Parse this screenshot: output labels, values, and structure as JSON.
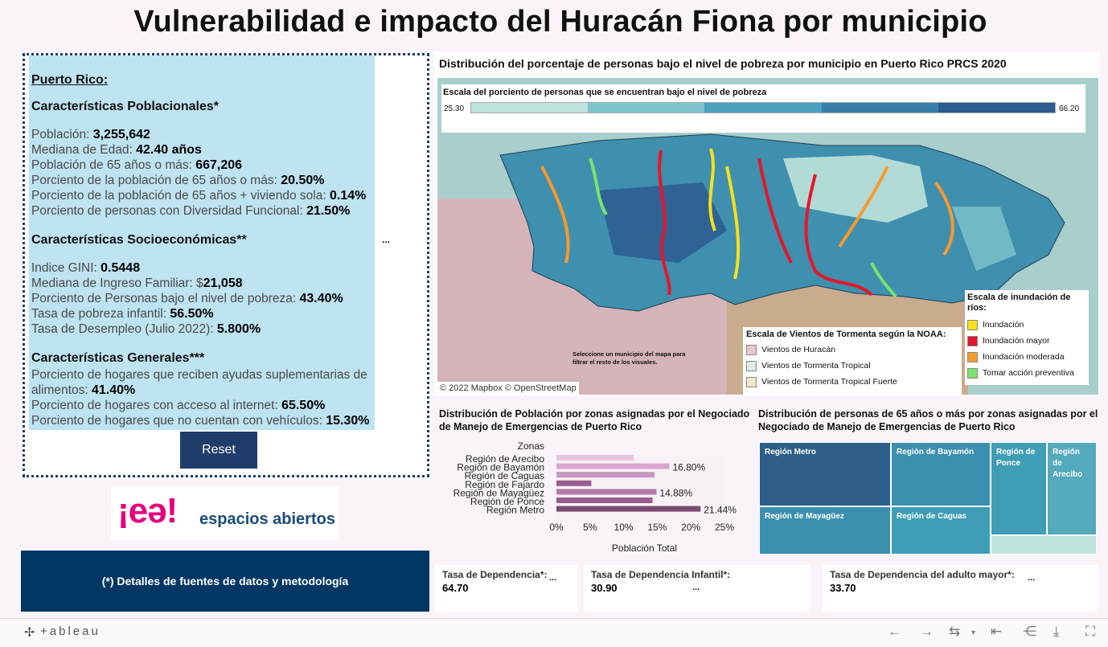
{
  "title": "Vulnerabilidad e impacto del Huracán Fiona por municipio",
  "info": {
    "heading": "Puerto Rico:",
    "pop_heading": "Características Poblacionales*",
    "pop_lines": [
      {
        "label": "Población: ",
        "value": "3,255,642"
      },
      {
        "label": "Mediana de Edad: ",
        "value": "42.40 años"
      },
      {
        "label": "Población de 65 años o más: ",
        "value": "667,206"
      },
      {
        "label": "Porciento de la población de 65 años o más: ",
        "value": "20.50%"
      },
      {
        "label": "Porciento de la población de 65 años + viviendo sola: ",
        "value": "0.14%"
      },
      {
        "label": "Porciento de personas con Diversidad Funcional: ",
        "value": "21.50%"
      }
    ],
    "socio_heading": "Características Socioeconómicas**",
    "socio_lines": [
      {
        "label": "Indice GINI: ",
        "value": "0.5448"
      },
      {
        "label": "Mediana de Ingreso Familiar: $",
        "value": "21,058"
      },
      {
        "label": "Porciento de Personas bajo el nivel de pobreza: ",
        "value": "43.40%"
      },
      {
        "label": "Tasa de pobreza infantil: ",
        "value": "56.50%"
      },
      {
        "label": "Tasa de Desempleo (Julio 2022): ",
        "value": "5.800%"
      }
    ],
    "gen_heading": "Características Generales***",
    "gen_lines": [
      {
        "label": "Porciento de hogares que reciben ayudas suplementarias de alimentos: ",
        "value": "41.40%"
      },
      {
        "label": "Porciento de hogares con acceso al internet: ",
        "value": "65.50%"
      },
      {
        "label": "Porciento de hogares que no cuentan con vehículos: ",
        "value": "15.30%"
      }
    ],
    "ellipsis": "...",
    "reset_label": "Reset"
  },
  "logo": {
    "mark": "¡eə!",
    "word": "espacios abiertos"
  },
  "details_label": "(*) Detalles de fuentes de datos y metodología",
  "map": {
    "title": "Distribución del porcentaje de personas bajo el nivel de pobreza por municipio en Puerto Rico PRCS 2020",
    "scale_title": "Escala del porciento de personas que se encuentran bajo el nivel de pobreza",
    "scale_min": "25.30",
    "scale_max": "66.20",
    "scale_colors": [
      "#bfe3dd",
      "#7fc3cc",
      "#4aa0bd",
      "#3a7fa8",
      "#2c5c8e"
    ],
    "attribution": "© 2022 Mapbox  © OpenStreetMap",
    "select_note": "Seleccione un municipio del mapa para filtrar el resto de los visuales.",
    "noaa_title": "Escala de Vientos de Tormenta según la NOAA:",
    "noaa_items": [
      {
        "label": "Vientos de Huracán",
        "color": "#e8c8cf"
      },
      {
        "label": "Vientos de Tormenta Tropical",
        "color": "#dcefe2"
      },
      {
        "label": "Vientos de Tormenta Tropical Fuerte",
        "color": "#f5e8c8"
      }
    ],
    "flood_title": "Escala de inundación de ríos:",
    "flood_items": [
      {
        "label": "Inundación",
        "color": "#f7e01b"
      },
      {
        "label": "Inundación mayor",
        "color": "#e5162b"
      },
      {
        "label": "Inundación moderada",
        "color": "#f79a2e"
      },
      {
        "label": "Tomar acción preventiva",
        "color": "#7be36b"
      }
    ]
  },
  "bar": {
    "title": "Distribución de Población por zonas asignadas por el Negociado de Manejo de Emergencias de Puerto Rico",
    "axis_title": "Zonas",
    "xlabel": "Población Total",
    "ticks": [
      "0%",
      "5%",
      "10%",
      "15%",
      "20%",
      "25%"
    ]
  },
  "chart_data": {
    "type": "bar",
    "orientation": "horizontal",
    "categories": [
      "Región de Arecibo",
      "Región de Bayamón",
      "Región de Caguas",
      "Región de Fajardo",
      "Región de Mayagüez",
      "Región de Ponce",
      "Región Metro"
    ],
    "values": [
      11.5,
      16.8,
      14.6,
      5.2,
      14.88,
      14.3,
      21.44
    ],
    "labels": [
      "",
      "16.80%",
      "",
      "",
      "14.88%",
      "",
      "21.44%"
    ],
    "colors": [
      "#e6c5e0",
      "#d8a7cf",
      "#c996c0",
      "#9a5d8e",
      "#b07aa6",
      "#9a5d8e",
      "#7a4c72"
    ],
    "xlim": [
      0,
      25
    ],
    "xlabel": "Población Total",
    "ylabel": "Zonas"
  },
  "tree": {
    "title": "Distribución de personas de 65 años o más por zonas asignadas por el Negociado de Manejo de Emergencias de Puerto Rico",
    "items": [
      {
        "label": "Región Metro",
        "color": "#2d5f8a"
      },
      {
        "label": "Región de Bayamón",
        "color": "#3b8faf"
      },
      {
        "label": "Región de Ponce",
        "color": "#3f9db5"
      },
      {
        "label": "Región de Arecibo",
        "color": "#55a9bc"
      },
      {
        "label": "Región de Mayagüez",
        "color": "#3b8faf"
      },
      {
        "label": "Región de Caguas",
        "color": "#3f9db5"
      },
      {
        "label": "",
        "color": "#bfe3dd"
      }
    ]
  },
  "kpis": [
    {
      "label": "Tasa de Dependencia*:",
      "value": "64.70",
      "dots": "..."
    },
    {
      "label": "Tasa de Dependencia Infantil*:",
      "value": "30.90",
      "dots": "..."
    },
    {
      "label": "Tasa de Dependencia del adulto mayor*:",
      "value": "33.70",
      "dots": "..."
    }
  ],
  "toolbar": {
    "logo": "+ableau",
    "icons": [
      "undo-icon",
      "redo-icon",
      "revert-icon",
      "first-icon",
      "share-icon",
      "download-icon",
      "fullscreen-icon"
    ]
  }
}
